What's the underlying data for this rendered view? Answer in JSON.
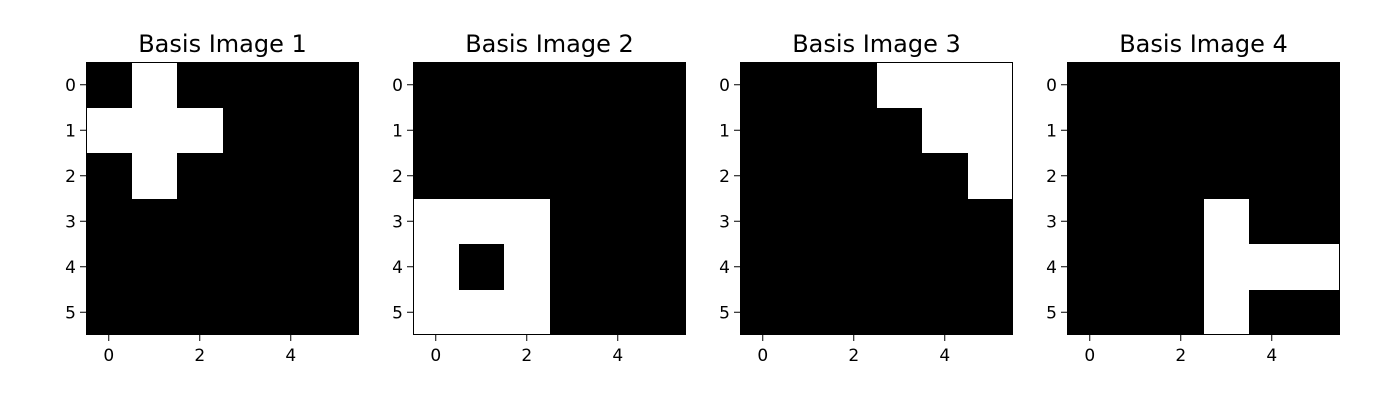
{
  "chart_data": [
    {
      "type": "heatmap",
      "title": "Basis Image 1",
      "colormap": "gray",
      "x_ticks": [
        0,
        2,
        4
      ],
      "y_ticks": [
        0,
        1,
        2,
        3,
        4,
        5
      ],
      "xlim": [
        -0.5,
        5.5
      ],
      "ylim": [
        5.5,
        -0.5
      ],
      "grid": false,
      "values": [
        [
          0,
          1,
          0,
          0,
          0,
          0
        ],
        [
          1,
          1,
          1,
          0,
          0,
          0
        ],
        [
          0,
          1,
          0,
          0,
          0,
          0
        ],
        [
          0,
          0,
          0,
          0,
          0,
          0
        ],
        [
          0,
          0,
          0,
          0,
          0,
          0
        ],
        [
          0,
          0,
          0,
          0,
          0,
          0
        ]
      ]
    },
    {
      "type": "heatmap",
      "title": "Basis Image 2",
      "colormap": "gray",
      "x_ticks": [
        0,
        2,
        4
      ],
      "y_ticks": [
        0,
        1,
        2,
        3,
        4,
        5
      ],
      "xlim": [
        -0.5,
        5.5
      ],
      "ylim": [
        5.5,
        -0.5
      ],
      "grid": false,
      "values": [
        [
          0,
          0,
          0,
          0,
          0,
          0
        ],
        [
          0,
          0,
          0,
          0,
          0,
          0
        ],
        [
          0,
          0,
          0,
          0,
          0,
          0
        ],
        [
          1,
          1,
          1,
          0,
          0,
          0
        ],
        [
          1,
          0,
          1,
          0,
          0,
          0
        ],
        [
          1,
          1,
          1,
          0,
          0,
          0
        ]
      ]
    },
    {
      "type": "heatmap",
      "title": "Basis Image 3",
      "colormap": "gray",
      "x_ticks": [
        0,
        2,
        4
      ],
      "y_ticks": [
        0,
        1,
        2,
        3,
        4,
        5
      ],
      "xlim": [
        -0.5,
        5.5
      ],
      "ylim": [
        5.5,
        -0.5
      ],
      "grid": false,
      "values": [
        [
          0,
          0,
          0,
          1,
          1,
          1
        ],
        [
          0,
          0,
          0,
          0,
          1,
          1
        ],
        [
          0,
          0,
          0,
          0,
          0,
          1
        ],
        [
          0,
          0,
          0,
          0,
          0,
          0
        ],
        [
          0,
          0,
          0,
          0,
          0,
          0
        ],
        [
          0,
          0,
          0,
          0,
          0,
          0
        ]
      ]
    },
    {
      "type": "heatmap",
      "title": "Basis Image 4",
      "colormap": "gray",
      "x_ticks": [
        0,
        2,
        4
      ],
      "y_ticks": [
        0,
        1,
        2,
        3,
        4,
        5
      ],
      "xlim": [
        -0.5,
        5.5
      ],
      "ylim": [
        5.5,
        -0.5
      ],
      "grid": false,
      "values": [
        [
          0,
          0,
          0,
          0,
          0,
          0
        ],
        [
          0,
          0,
          0,
          0,
          0,
          0
        ],
        [
          0,
          0,
          0,
          0,
          0,
          0
        ],
        [
          0,
          0,
          0,
          1,
          0,
          0
        ],
        [
          0,
          0,
          0,
          1,
          1,
          1
        ],
        [
          0,
          0,
          0,
          1,
          0,
          0
        ]
      ]
    }
  ],
  "colors": {
    "on": "#ffffff",
    "off": "#000000"
  }
}
